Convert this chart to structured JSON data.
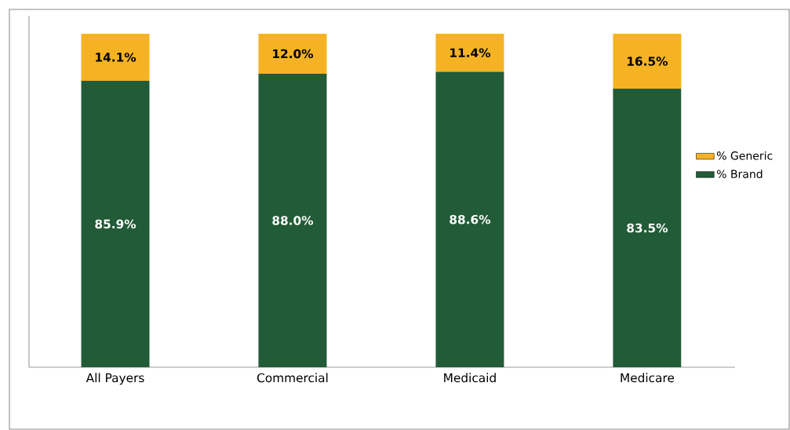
{
  "chart_data": {
    "type": "bar",
    "stacked": true,
    "legend": "right",
    "tick_labels": "x",
    "categories": [
      "All Payers",
      "Commercial",
      "Medicaid",
      "Medicare"
    ],
    "series": [
      {
        "name": "% Brand",
        "color": "#225b37",
        "values": [
          85.9,
          88.0,
          88.6,
          83.5
        ],
        "value_labels": [
          "85.9%",
          "88.0%",
          "88.6%",
          "83.5%"
        ]
      },
      {
        "name": "% Generic",
        "color": "#f5b324",
        "values": [
          14.1,
          12.0,
          11.4,
          16.5
        ],
        "value_labels": [
          "14.1%",
          "12.0%",
          "11.4%",
          "16.5%"
        ]
      }
    ]
  }
}
